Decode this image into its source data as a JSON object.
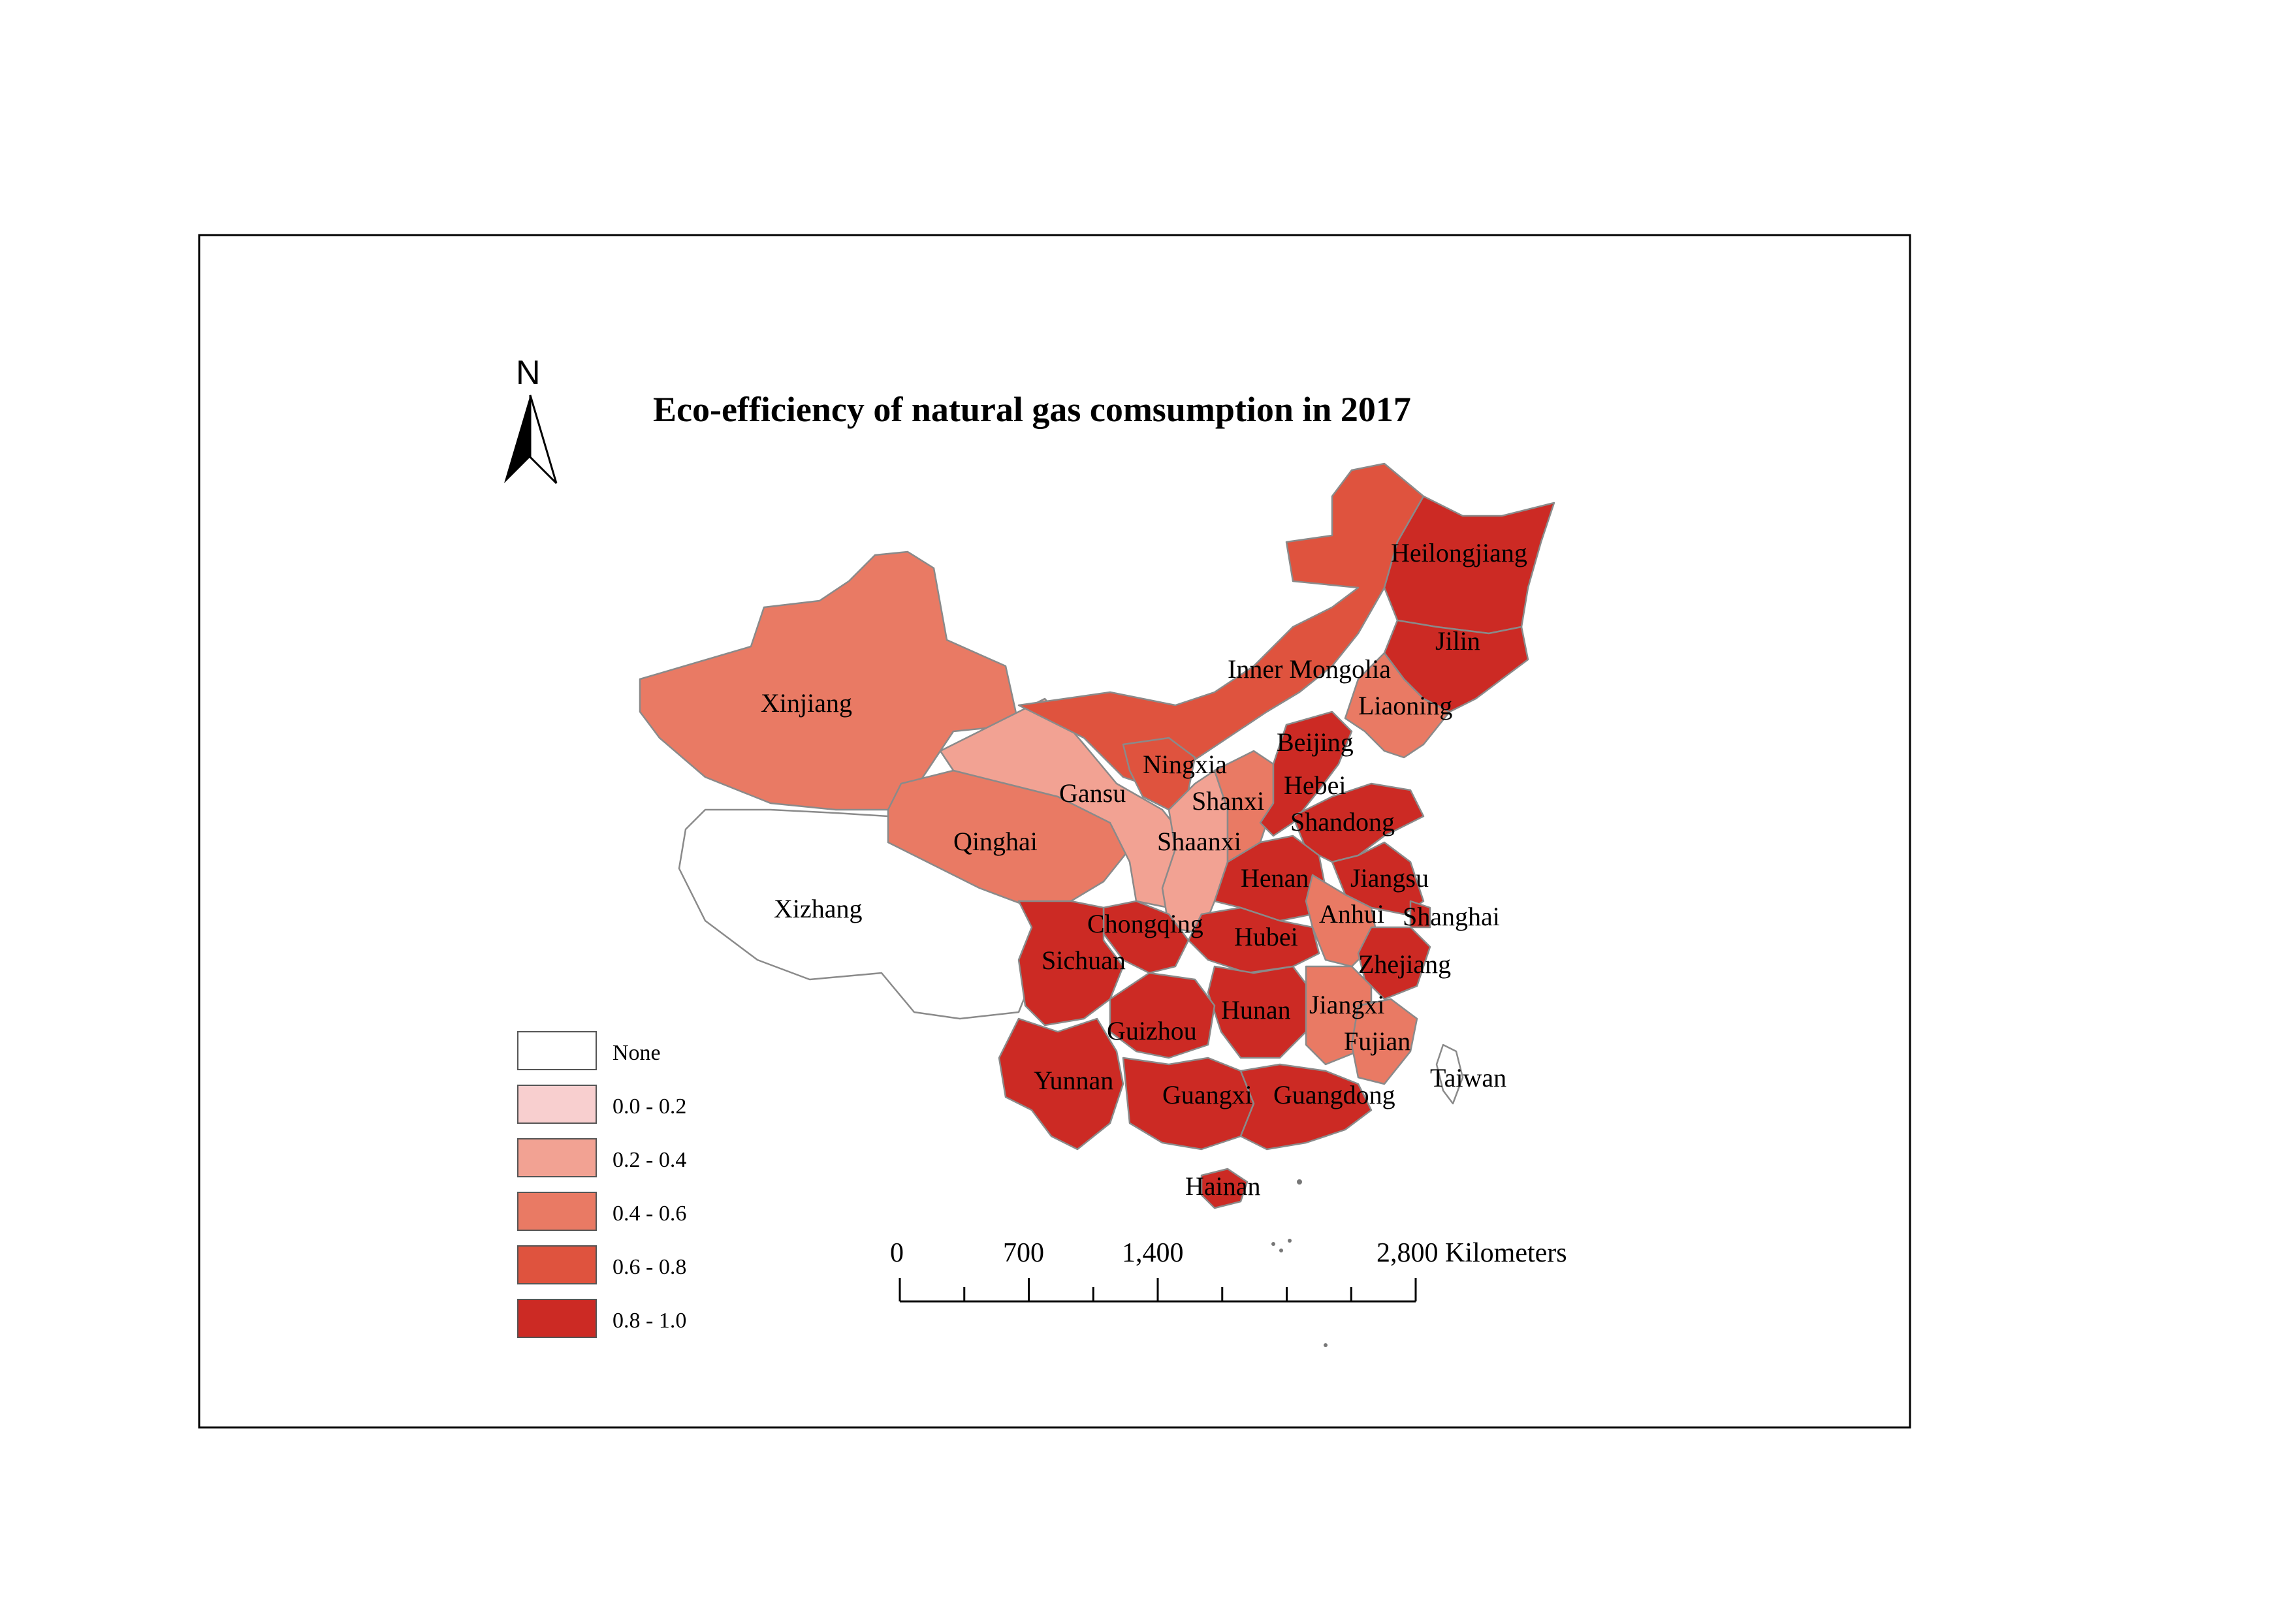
{
  "map": {
    "title": "Eco-efficiency of natural gas comsumption in 2017",
    "north_label": "N",
    "legend": {
      "items": [
        {
          "label": "None",
          "color": "#ffffff"
        },
        {
          "label": "0.0 - 0.2",
          "color": "#f8cfcf"
        },
        {
          "label": "0.2 - 0.4",
          "color": "#f2a293"
        },
        {
          "label": "0.4 - 0.6",
          "color": "#e97a64"
        },
        {
          "label": "0.6 - 0.8",
          "color": "#df533e"
        },
        {
          "label": "0.8 - 1.0",
          "color": "#cc2a24"
        }
      ]
    },
    "scale_bar": {
      "ticks": [
        "0",
        "700",
        "1,400",
        "2,800 Kilometers"
      ]
    },
    "regions": [
      {
        "name": "Heilongjiang",
        "class": "0.8 - 1.0"
      },
      {
        "name": "Jilin",
        "class": "0.8 - 1.0"
      },
      {
        "name": "Inner Mongolia",
        "class": "0.6 - 0.8"
      },
      {
        "name": "Liaoning",
        "class": "0.4 - 0.6"
      },
      {
        "name": "Xinjiang",
        "class": "0.4 - 0.6"
      },
      {
        "name": "Beijing",
        "class": "0.8 - 1.0"
      },
      {
        "name": "Ningxia",
        "class": "0.6 - 0.8"
      },
      {
        "name": "Gansu",
        "class": "0.2 - 0.4"
      },
      {
        "name": "Shanxi",
        "class": "0.4 - 0.6"
      },
      {
        "name": "Hebei",
        "class": "0.8 - 1.0"
      },
      {
        "name": "Shandong",
        "class": "0.8 - 1.0"
      },
      {
        "name": "Qinghai",
        "class": "0.4 - 0.6"
      },
      {
        "name": "Shaanxi",
        "class": "0.2 - 0.4"
      },
      {
        "name": "Henan",
        "class": "0.8 - 1.0"
      },
      {
        "name": "Jiangsu",
        "class": "0.8 - 1.0"
      },
      {
        "name": "Xizhang",
        "class": "None"
      },
      {
        "name": "Chongqing",
        "class": "0.8 - 1.0"
      },
      {
        "name": "Hubei",
        "class": "0.8 - 1.0"
      },
      {
        "name": "Anhui",
        "class": "0.4 - 0.6"
      },
      {
        "name": "Shanghai",
        "class": "0.8 - 1.0"
      },
      {
        "name": "Sichuan",
        "class": "0.8 - 1.0"
      },
      {
        "name": "Zhejiang",
        "class": "0.8 - 1.0"
      },
      {
        "name": "Hunan",
        "class": "0.8 - 1.0"
      },
      {
        "name": "Jiangxi",
        "class": "0.4 - 0.6"
      },
      {
        "name": "Guizhou",
        "class": "0.8 - 1.0"
      },
      {
        "name": "Fujian",
        "class": "0.4 - 0.6"
      },
      {
        "name": "Yunnan",
        "class": "0.8 - 1.0"
      },
      {
        "name": "Guangxi",
        "class": "0.8 - 1.0"
      },
      {
        "name": "Guangdong",
        "class": "0.8 - 1.0"
      },
      {
        "name": "Taiwan",
        "class": "None"
      },
      {
        "name": "Hainan",
        "class": "0.8 - 1.0"
      }
    ]
  }
}
